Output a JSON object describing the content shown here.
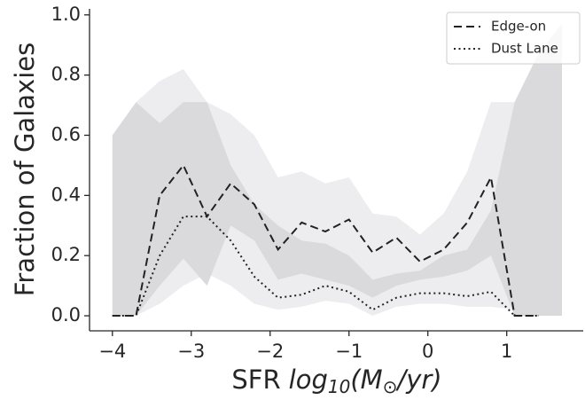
{
  "chart_data": {
    "type": "line",
    "ylabel": "Fraction of Galaxies",
    "xlabel": [
      "SFR",
      "log",
      "10",
      "(M",
      "⊙",
      "/yr)"
    ],
    "x": [
      -4,
      -3.7,
      -3.4,
      -3.1,
      -2.8,
      -2.5,
      -2.2,
      -1.9,
      -1.6,
      -1.3,
      -1.0,
      -0.7,
      -0.4,
      -0.1,
      0.2,
      0.5,
      0.8,
      1.1,
      1.4,
      1.7
    ],
    "series": [
      {
        "name": "Edge-on",
        "color": "#222222",
        "dash": "9 5",
        "values": [
          0,
          0,
          0.4,
          0.5,
          0.33,
          0.44,
          0.37,
          0.22,
          0.31,
          0.28,
          0.32,
          0.21,
          0.26,
          0.18,
          0.22,
          0.31,
          0.46,
          0,
          0,
          null
        ]
      },
      {
        "name": "Dust Lane",
        "color": "#222222",
        "dash": "2 3.5",
        "values": [
          0,
          0,
          0.2,
          0.33,
          0.33,
          0.25,
          0.13,
          0.06,
          0.07,
          0.1,
          0.08,
          0.02,
          0.06,
          0.075,
          0.075,
          0.065,
          0.08,
          0,
          0,
          null
        ]
      }
    ],
    "bands": [
      {
        "color": "#ededef",
        "upper": [
          null,
          0.71,
          0.78,
          0.82,
          0.71,
          0.67,
          0.6,
          0.46,
          0.48,
          0.44,
          0.46,
          0.34,
          0.33,
          0.27,
          0.34,
          0.48,
          0.71,
          0.71,
          0.87,
          0.97
        ],
        "lower": [
          null,
          0,
          0.04,
          0.1,
          0.14,
          0.1,
          0.04,
          0.02,
          0.03,
          0.05,
          0.04,
          0.0,
          0.03,
          0.04,
          0.04,
          0.03,
          0.03,
          0.02,
          0.02,
          0.03
        ]
      },
      {
        "color": "#dadadc",
        "upper": [
          0.6,
          0.71,
          0.64,
          0.71,
          0.71,
          0.5,
          0.37,
          0.3,
          0.25,
          0.24,
          0.2,
          0.12,
          0.14,
          0.15,
          0.2,
          0.22,
          0.35,
          0.71,
          0.87,
          0.97
        ],
        "lower": [
          0,
          0,
          0.1,
          0.19,
          0.1,
          0.3,
          0.25,
          0.12,
          0.14,
          0.12,
          0.1,
          0.06,
          0.1,
          0.12,
          0.13,
          0.15,
          0.2,
          0,
          0,
          0
        ]
      }
    ],
    "xlim": [
      -4.29,
      1.97
    ],
    "ylim": [
      -0.05,
      1.02
    ],
    "xticks": [
      {
        "value": -4,
        "label": "−4"
      },
      {
        "value": -3,
        "label": "−3"
      },
      {
        "value": -2,
        "label": "−2"
      },
      {
        "value": -1,
        "label": "−1"
      },
      0,
      1
    ],
    "yticks": [
      {
        "value": 0,
        "label": "0.0"
      },
      {
        "value": 0.2,
        "label": "0.2"
      },
      {
        "value": 0.4,
        "label": "0.4"
      },
      {
        "value": 0.6,
        "label": "0.6"
      },
      {
        "value": 0.8,
        "label": "0.8"
      },
      {
        "value": 1,
        "label": "1.0"
      }
    ],
    "legend": "upper right"
  }
}
